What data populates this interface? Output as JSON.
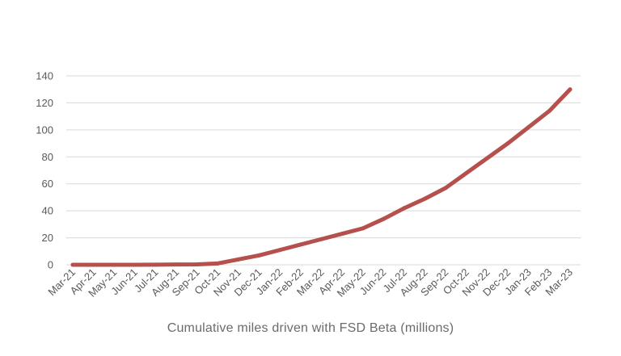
{
  "chart_data": {
    "type": "line",
    "title": "Cumulative miles driven with FSD Beta (millions)",
    "xlabel": "",
    "ylabel": "",
    "categories": [
      "Mar-21",
      "Apr-21",
      "May-21",
      "Jun-21",
      "Jul-21",
      "Aug-21",
      "Sep-21",
      "Oct-21",
      "Nov-21",
      "Dec-21",
      "Jan-22",
      "Feb-22",
      "Mar-22",
      "Apr-22",
      "May-22",
      "Jun-22",
      "Jul-22",
      "Aug-22",
      "Sep-22",
      "Oct-22",
      "Nov-22",
      "Dec-22",
      "Jan-23",
      "Feb-23",
      "Mar-23"
    ],
    "series": [
      {
        "values": [
          0,
          0,
          0,
          0,
          0.1,
          0.2,
          0.3,
          1,
          4,
          7,
          11,
          15,
          19,
          23,
          27,
          34,
          42,
          49,
          57,
          68,
          79,
          90,
          102,
          114,
          130
        ]
      }
    ],
    "yticks": [
      "0",
      "20",
      "40",
      "60",
      "80",
      "100",
      "120",
      "140"
    ],
    "ylim": [
      0,
      140
    ],
    "grid": true,
    "line_color": "#b5504d",
    "grid_color": "#d9d9d9"
  }
}
